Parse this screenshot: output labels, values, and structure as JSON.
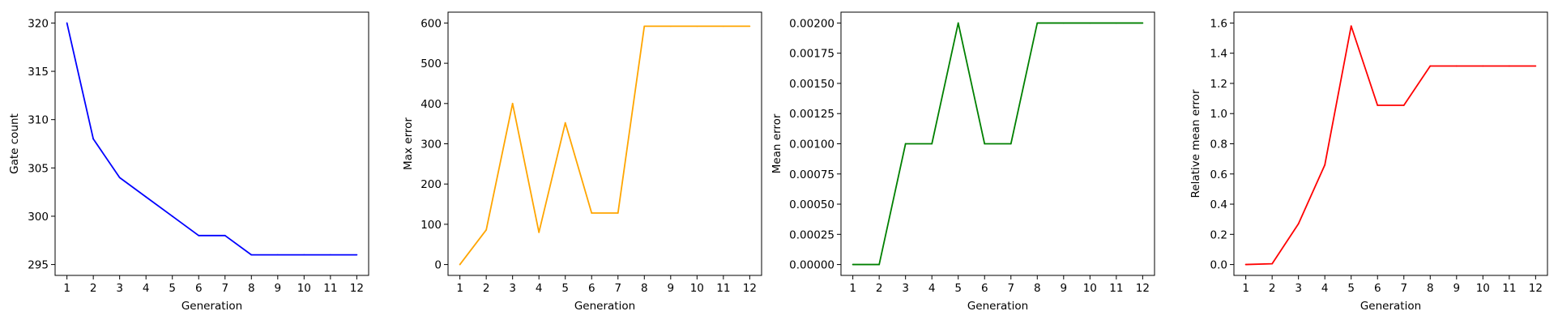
{
  "chart_data": [
    {
      "type": "line",
      "title": "",
      "xlabel": "Generation",
      "ylabel": "Gate count",
      "x": [
        1,
        2,
        3,
        4,
        5,
        6,
        7,
        8,
        9,
        10,
        11,
        12
      ],
      "series": [
        {
          "values": [
            320,
            308,
            304,
            302,
            300,
            298,
            298,
            296,
            296,
            296,
            296,
            296
          ],
          "color": "#0000ff"
        }
      ],
      "ylim": [
        295,
        320
      ],
      "yticks": [
        295,
        300,
        305,
        310,
        315,
        320
      ],
      "ytick_labels": [
        "295",
        "300",
        "305",
        "310",
        "315",
        "320"
      ],
      "xticks": [
        1,
        2,
        3,
        4,
        5,
        6,
        7,
        8,
        9,
        10,
        11,
        12
      ],
      "grid": false
    },
    {
      "type": "line",
      "title": "",
      "xlabel": "Generation",
      "ylabel": "Max error",
      "x": [
        1,
        2,
        3,
        4,
        5,
        6,
        7,
        8,
        9,
        10,
        11,
        12
      ],
      "series": [
        {
          "values": [
            0,
            86,
            400,
            80,
            352,
            128,
            128,
            592,
            592,
            592,
            592,
            592
          ],
          "color": "#ffa500"
        }
      ],
      "ylim": [
        0,
        600
      ],
      "yticks": [
        0,
        100,
        200,
        300,
        400,
        500,
        600
      ],
      "ytick_labels": [
        "0",
        "100",
        "200",
        "300",
        "400",
        "500",
        "600"
      ],
      "xticks": [
        1,
        2,
        3,
        4,
        5,
        6,
        7,
        8,
        9,
        10,
        11,
        12
      ],
      "grid": false
    },
    {
      "type": "line",
      "title": "",
      "xlabel": "Generation",
      "ylabel": "Mean error",
      "x": [
        1,
        2,
        3,
        4,
        5,
        6,
        7,
        8,
        9,
        10,
        11,
        12
      ],
      "series": [
        {
          "values": [
            0,
            0,
            0.001,
            0.001,
            0.002,
            0.001,
            0.001,
            0.002,
            0.002,
            0.002,
            0.002,
            0.002
          ],
          "color": "#008000"
        }
      ],
      "ylim": [
        0,
        0.002
      ],
      "yticks": [
        0,
        0.00025,
        0.0005,
        0.00075,
        0.001,
        0.00125,
        0.0015,
        0.00175,
        0.002
      ],
      "ytick_labels": [
        "0.00000",
        "0.00025",
        "0.00050",
        "0.00075",
        "0.00100",
        "0.00125",
        "0.00150",
        "0.00175",
        "0.00200"
      ],
      "xticks": [
        1,
        2,
        3,
        4,
        5,
        6,
        7,
        8,
        9,
        10,
        11,
        12
      ],
      "grid": false
    },
    {
      "type": "line",
      "title": "",
      "xlabel": "Generation",
      "ylabel": "Relative mean error",
      "x": [
        1,
        2,
        3,
        4,
        5,
        6,
        7,
        8,
        9,
        10,
        11,
        12
      ],
      "series": [
        {
          "values": [
            0,
            0.005,
            0.27,
            0.66,
            1.58,
            1.055,
            1.055,
            1.315,
            1.315,
            1.315,
            1.315,
            1.315
          ],
          "color": "#ff0000"
        }
      ],
      "ylim": [
        0,
        1.6
      ],
      "yticks": [
        0,
        0.2,
        0.4,
        0.6,
        0.8,
        1.0,
        1.2,
        1.4,
        1.6
      ],
      "ytick_labels": [
        "0.0",
        "0.2",
        "0.4",
        "0.6",
        "0.8",
        "1.0",
        "1.2",
        "1.4",
        "1.6"
      ],
      "xticks": [
        1,
        2,
        3,
        4,
        5,
        6,
        7,
        8,
        9,
        10,
        11,
        12
      ],
      "grid": false
    }
  ]
}
